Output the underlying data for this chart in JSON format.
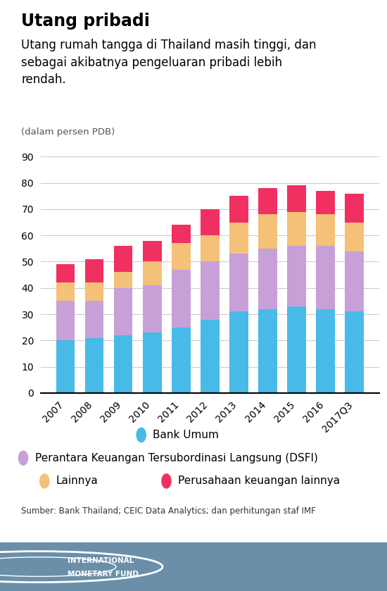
{
  "title_bold": "Utang pribadi",
  "title_sub": "Utang rumah tangga di Thailand masih tinggi, dan\nsebagai akibatnya pengeluaran pribadi lebih\nrendah.",
  "title_sub2": "(dalam persen PDB)",
  "years": [
    "2007",
    "2008",
    "2009",
    "2010",
    "2011",
    "2012",
    "2013",
    "2014",
    "2015",
    "2016",
    "2017Q3"
  ],
  "bank_umum": [
    20,
    21,
    22,
    23,
    25,
    28,
    31,
    32,
    33,
    32,
    31
  ],
  "dsfi": [
    15,
    14,
    18,
    18,
    22,
    22,
    22,
    23,
    23,
    24,
    23
  ],
  "lainnya": [
    7,
    7,
    6,
    9,
    10,
    10,
    12,
    13,
    13,
    12,
    11
  ],
  "perusahaan": [
    7,
    9,
    10,
    8,
    7,
    10,
    10,
    10,
    10,
    9,
    11
  ],
  "color_bank": "#47BAE8",
  "color_dsfi": "#C8A0D8",
  "color_lainnya": "#F5C078",
  "color_perus": "#F03060",
  "ylim": [
    0,
    90
  ],
  "yticks": [
    0,
    10,
    20,
    30,
    40,
    50,
    60,
    70,
    80,
    90
  ],
  "source": "Sumber: Bank Thailand; CEIC Data Analytics; dan perhitungan staf IMF",
  "legend_bank": "Bank Umum",
  "legend_dsfi": "Perantara Keuangan Tersubordinasi Langsung (DSFI)",
  "legend_lainnya": "Lainnya",
  "legend_perus": "Perusahaan keuangan lainnya",
  "bg_color": "#FFFFFF",
  "footer_color": "#6B8FA8",
  "bar_width": 0.65
}
